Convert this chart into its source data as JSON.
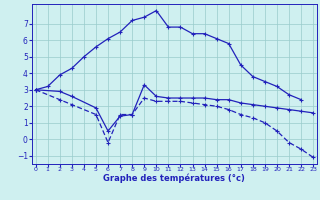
{
  "xlabel": "Graphe des températures (°c)",
  "bg_color": "#cff0f0",
  "line_color": "#2222bb",
  "grid_color": "#99cccc",
  "ylim": [
    -1.5,
    8.2
  ],
  "xlim": [
    -0.3,
    23.3
  ],
  "yticks": [
    -1,
    0,
    1,
    2,
    3,
    4,
    5,
    6,
    7
  ],
  "xticks": [
    0,
    1,
    2,
    3,
    4,
    5,
    6,
    7,
    8,
    9,
    10,
    11,
    12,
    13,
    14,
    15,
    16,
    17,
    18,
    19,
    20,
    21,
    22,
    23
  ],
  "line1_x": [
    0,
    1,
    2,
    3,
    4,
    5,
    6,
    7,
    8,
    9,
    10,
    11,
    12,
    13,
    14,
    15,
    16,
    17,
    18,
    19,
    20,
    21,
    22
  ],
  "line1_y": [
    3.0,
    3.2,
    3.9,
    4.3,
    5.0,
    5.6,
    6.1,
    6.5,
    7.2,
    7.4,
    7.8,
    6.8,
    6.8,
    6.4,
    6.4,
    6.1,
    5.8,
    4.5,
    3.8,
    3.5,
    3.2,
    2.7,
    2.4
  ],
  "line2_x": [
    0,
    2,
    3,
    5,
    6,
    7,
    8,
    9,
    10,
    11,
    12,
    13,
    14,
    15,
    16,
    17,
    18,
    19,
    20,
    21,
    22,
    23
  ],
  "line2_y": [
    3.0,
    2.9,
    2.6,
    1.9,
    0.5,
    1.4,
    1.5,
    3.3,
    2.6,
    2.5,
    2.5,
    2.5,
    2.5,
    2.4,
    2.4,
    2.2,
    2.1,
    2.0,
    1.9,
    1.8,
    1.7,
    1.6
  ],
  "line3_x": [
    0,
    2,
    3,
    5,
    6,
    7,
    8,
    9,
    10,
    11,
    12,
    13,
    14,
    15,
    16,
    17,
    18,
    19,
    20,
    21,
    22,
    23
  ],
  "line3_y": [
    3.0,
    2.4,
    2.1,
    1.5,
    -0.2,
    1.5,
    1.5,
    2.5,
    2.3,
    2.3,
    2.3,
    2.2,
    2.1,
    2.0,
    1.8,
    1.5,
    1.3,
    1.0,
    0.5,
    -0.2,
    -0.6,
    -1.1
  ]
}
